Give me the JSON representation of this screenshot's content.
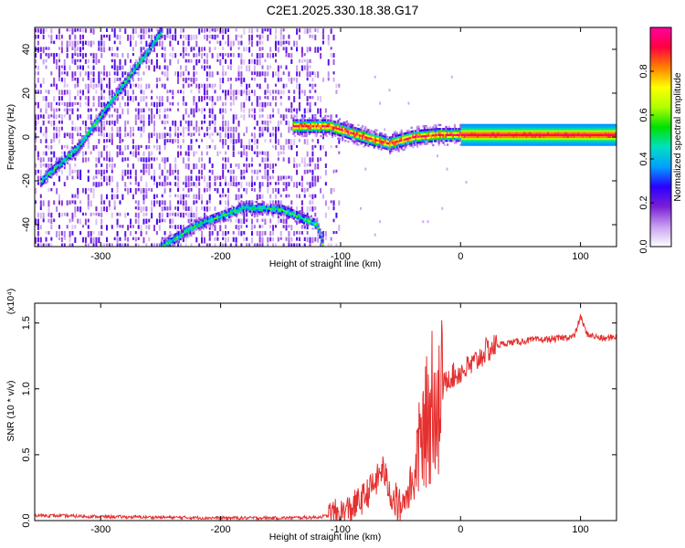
{
  "title": "C2E1.2025.330.18.38.G17",
  "chart_data": [
    {
      "type": "heatmap",
      "xlabel": "Height of straight line (km)",
      "ylabel": "Frequency (Hz)",
      "xlim": [
        -355,
        130
      ],
      "ylim": [
        -50,
        50
      ],
      "x_ticks": [
        -300,
        -200,
        -100,
        0,
        100
      ],
      "y_ticks": [
        -40,
        -20,
        0,
        20,
        40
      ],
      "colorbar": {
        "label": "Normalized spectral amplitude",
        "range": [
          0,
          1
        ],
        "ticks": [
          0.0,
          0.2,
          0.4,
          0.6,
          0.8
        ],
        "tick_labels": [
          "0.0",
          "0.2",
          "0.4",
          "0.6",
          "0.8"
        ],
        "colors": [
          "#ffffff",
          "#c8a0f0",
          "#7b1fd6",
          "#2a00ff",
          "#00a0ff",
          "#00e0c0",
          "#00e000",
          "#b0ff00",
          "#ffff00",
          "#ff8000",
          "#ff0040",
          "#ff00a0"
        ]
      },
      "features": [
        {
          "name": "ascending diagonal trace",
          "points": [
            [
              -350,
              -20
            ],
            [
              -320,
              -5
            ],
            [
              -300,
              10
            ],
            [
              -280,
              25
            ],
            [
              -260,
              40
            ],
            [
              -250,
              48
            ]
          ]
        },
        {
          "name": "lower arc trace",
          "points": [
            [
              -250,
              -50
            ],
            [
              -220,
              -40
            ],
            [
              -180,
              -32
            ],
            [
              -150,
              -33
            ],
            [
              -120,
              -40
            ],
            [
              -115,
              -50
            ]
          ]
        },
        {
          "name": "main near-zero trace",
          "points": [
            [
              -140,
              5
            ],
            [
              -110,
              5
            ],
            [
              -80,
              0
            ],
            [
              -60,
              -3
            ],
            [
              -40,
              0
            ],
            [
              -20,
              1
            ],
            [
              0,
              1
            ],
            [
              50,
              1
            ],
            [
              80,
              1
            ],
            [
              130,
              1
            ]
          ]
        }
      ]
    },
    {
      "type": "line",
      "xlabel": "Height of straight line (km)",
      "ylabel": "SNR (10 * v/v)",
      "y_scale_label": "(x10⁴)",
      "xlim": [
        -355,
        130
      ],
      "ylim": [
        0,
        1.65
      ],
      "x_ticks": [
        -300,
        -200,
        -100,
        0,
        100
      ],
      "y_ticks": [
        0.0,
        0.5,
        1.0,
        1.5
      ],
      "y_tick_labels": [
        "0.0",
        "0.5",
        "1.0",
        "1.5"
      ],
      "line_color": "#e53030",
      "series": [
        {
          "x": [
            -355,
            -300,
            -250,
            -200,
            -150,
            -120,
            -100,
            -90,
            -80,
            -70,
            -65,
            -60,
            -55,
            -50,
            -45,
            -40,
            -35,
            -30,
            -25,
            -22,
            -20,
            -18,
            -15,
            -10,
            -5,
            0,
            10,
            20,
            30,
            40,
            60,
            80,
            95,
            100,
            105,
            110,
            120,
            130
          ],
          "y": [
            0.04,
            0.03,
            0.025,
            0.02,
            0.02,
            0.025,
            0.05,
            0.1,
            0.18,
            0.3,
            0.4,
            0.25,
            0.15,
            0.1,
            0.2,
            0.3,
            0.55,
            0.75,
            0.85,
            1.2,
            1.0,
            0.9,
            1.0,
            1.1,
            1.1,
            1.13,
            1.18,
            1.28,
            1.33,
            1.35,
            1.37,
            1.38,
            1.4,
            1.55,
            1.42,
            1.4,
            1.38,
            1.4
          ]
        }
      ]
    }
  ]
}
